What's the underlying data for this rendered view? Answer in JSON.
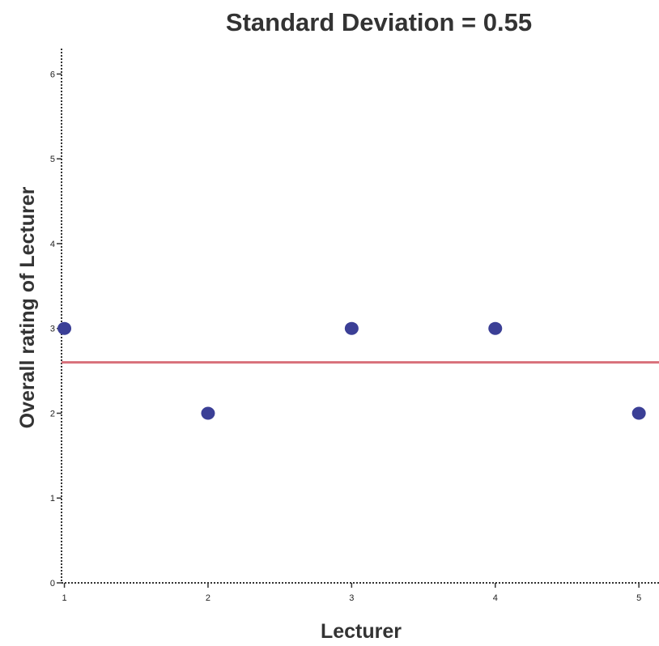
{
  "chart_data": {
    "type": "scatter",
    "title": "Standard Deviation = 0.55",
    "xlabel": "Lecturer",
    "ylabel": "Overall rating of Lecturer",
    "xlim": [
      0.98,
      5.14
    ],
    "ylim": [
      0,
      6.3
    ],
    "x_ticks": [
      "1",
      "2",
      "3",
      "4",
      "5"
    ],
    "y_ticks": [
      "0",
      "1",
      "2",
      "3",
      "4",
      "5",
      "6"
    ],
    "points": [
      {
        "x": 1,
        "y": 3
      },
      {
        "x": 2,
        "y": 2
      },
      {
        "x": 3,
        "y": 3
      },
      {
        "x": 4,
        "y": 3
      },
      {
        "x": 5,
        "y": 2
      }
    ],
    "mean_line": {
      "y": 2.6
    },
    "grid": false,
    "colors": {
      "points": "#3b3f96",
      "mean_line": "#d8707a",
      "axis": "#333333",
      "text": "#333333"
    }
  }
}
